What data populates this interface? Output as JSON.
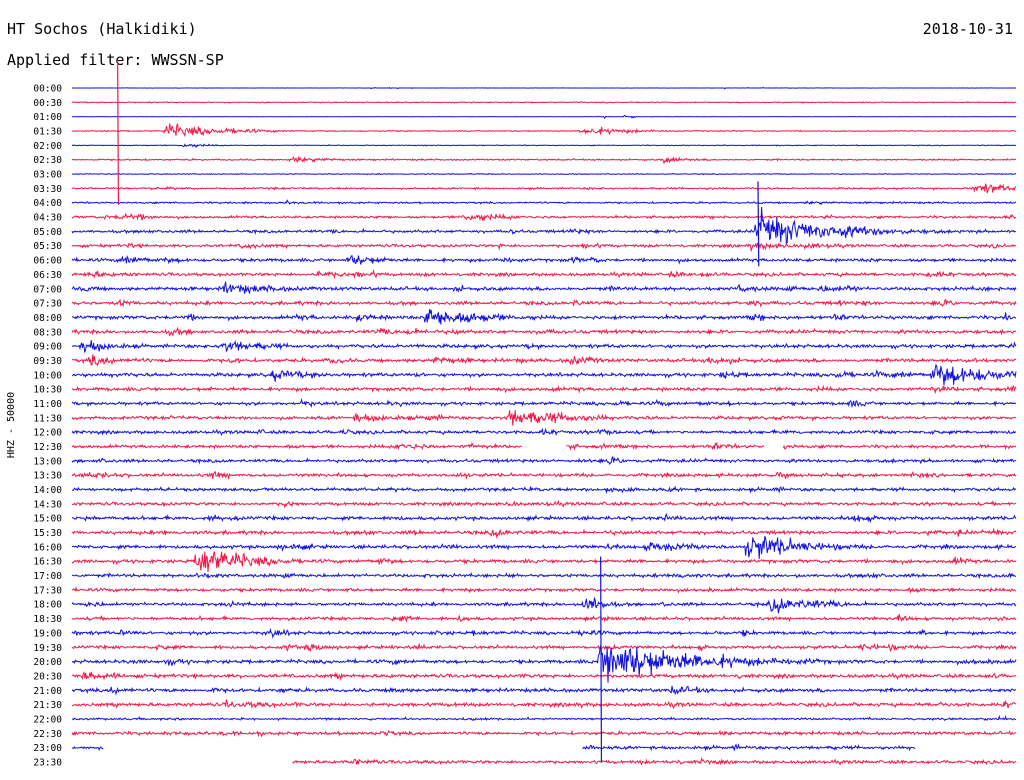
{
  "header": {
    "station": "HT Sochos (Halkidiki)",
    "date": "2018-10-31",
    "filter": "Applied filter: WWSSN-SP"
  },
  "chart_data": {
    "type": "helicorder",
    "channel_label": "HHZ - 50000",
    "row_labels": [
      "00:00",
      "00:30",
      "01:00",
      "01:30",
      "02:00",
      "02:30",
      "03:00",
      "03:30",
      "04:00",
      "04:30",
      "05:00",
      "05:30",
      "06:00",
      "06:30",
      "07:00",
      "07:30",
      "08:00",
      "08:30",
      "09:00",
      "09:30",
      "10:00",
      "10:30",
      "11:00",
      "11:30",
      "12:00",
      "12:30",
      "13:00",
      "13:30",
      "14:00",
      "14:30",
      "15:00",
      "15:30",
      "16:00",
      "16:30",
      "17:00",
      "17:30",
      "18:00",
      "18:30",
      "19:00",
      "19:30",
      "20:00",
      "20:30",
      "21:00",
      "21:30",
      "22:00",
      "22:30",
      "23:00",
      "23:30"
    ],
    "minutes_per_row": 30,
    "colors": [
      "#1010e0",
      "#f01848"
    ],
    "noise": [
      0.2,
      0.6,
      0.3,
      0.6,
      0.5,
      0.9,
      0.5,
      1.0,
      1.0,
      1.4,
      1.6,
      1.6,
      1.8,
      1.8,
      2.0,
      2.0,
      2.0,
      2.0,
      2.0,
      2.0,
      2.0,
      2.0,
      1.8,
      1.8,
      1.8,
      1.8,
      1.8,
      1.8,
      1.8,
      1.8,
      2.0,
      2.0,
      2.0,
      2.0,
      1.8,
      1.8,
      1.8,
      1.8,
      1.8,
      1.8,
      2.0,
      2.0,
      2.0,
      2.0,
      1.8,
      1.8,
      1.8,
      1.8
    ],
    "events": [
      {
        "row": 0,
        "min": 9.2,
        "amp": 4,
        "dur": 1.0
      },
      {
        "row": 0,
        "min": 20.0,
        "amp": 4,
        "dur": 1.6
      },
      {
        "row": 2,
        "min": 16.2,
        "amp": 5,
        "dur": 1.5
      },
      {
        "row": 3,
        "min": 3.0,
        "amp": 9,
        "dur": 1.8
      },
      {
        "row": 3,
        "min": 16.2,
        "amp": 6,
        "dur": 1.5
      },
      {
        "row": 4,
        "min": 3.5,
        "amp": 3,
        "dur": 0.8
      },
      {
        "row": 5,
        "min": 7.0,
        "amp": 4,
        "dur": 1.5
      },
      {
        "row": 5,
        "min": 18.8,
        "amp": 4,
        "dur": 1.0
      },
      {
        "row": 7,
        "min": 28.7,
        "amp": 8,
        "dur": 1.2
      },
      {
        "row": 9,
        "min": 1.5,
        "amp": 6,
        "dur": 1.2
      },
      {
        "row": 9,
        "min": 12.5,
        "amp": 6,
        "dur": 1.5
      },
      {
        "row": 10,
        "min": 21.8,
        "amp": 22,
        "dur": 2.5
      },
      {
        "row": 11,
        "min": 21.5,
        "amp": 5,
        "dur": 2.0
      },
      {
        "row": 12,
        "min": 1.6,
        "amp": 7,
        "dur": 1.0
      },
      {
        "row": 12,
        "min": 8.8,
        "amp": 8,
        "dur": 1.2
      },
      {
        "row": 13,
        "min": 0.5,
        "amp": 5,
        "dur": 1.2
      },
      {
        "row": 13,
        "min": 27.2,
        "amp": 5,
        "dur": 1.0
      },
      {
        "row": 14,
        "min": 4.8,
        "amp": 8,
        "dur": 2.0
      },
      {
        "row": 14,
        "min": 23.8,
        "amp": 5,
        "dur": 1.5
      },
      {
        "row": 15,
        "min": 27.5,
        "amp": 5,
        "dur": 1.0
      },
      {
        "row": 16,
        "min": 9.0,
        "amp": 5,
        "dur": 1.5
      },
      {
        "row": 16,
        "min": 11.3,
        "amp": 16,
        "dur": 1.6
      },
      {
        "row": 17,
        "min": 10.5,
        "amp": 5,
        "dur": 1.5
      },
      {
        "row": 18,
        "min": 0.4,
        "amp": 10,
        "dur": 1.0
      },
      {
        "row": 18,
        "min": 4.8,
        "amp": 10,
        "dur": 1.3
      },
      {
        "row": 19,
        "min": 0.6,
        "amp": 8,
        "dur": 1.0
      },
      {
        "row": 19,
        "min": 15.8,
        "amp": 6,
        "dur": 1.2
      },
      {
        "row": 19,
        "min": 20.2,
        "amp": 6,
        "dur": 1.5
      },
      {
        "row": 20,
        "min": 6.3,
        "amp": 8,
        "dur": 1.5
      },
      {
        "row": 20,
        "min": 20.6,
        "amp": 5,
        "dur": 1.5
      },
      {
        "row": 20,
        "min": 27.4,
        "amp": 16,
        "dur": 2.2
      },
      {
        "row": 23,
        "min": 9.0,
        "amp": 6,
        "dur": 1.8
      },
      {
        "row": 23,
        "min": 13.9,
        "amp": 13,
        "dur": 2.0
      },
      {
        "row": 25,
        "min": 10.3,
        "amp": 5,
        "dur": 1.8
      },
      {
        "row": 32,
        "min": 18.3,
        "amp": 7,
        "dur": 2.0
      },
      {
        "row": 32,
        "min": 21.5,
        "amp": 18,
        "dur": 1.8
      },
      {
        "row": 33,
        "min": 4.0,
        "amp": 22,
        "dur": 1.5
      },
      {
        "row": 36,
        "min": 16.3,
        "amp": 14,
        "dur": 0.6
      },
      {
        "row": 36,
        "min": 22.2,
        "amp": 10,
        "dur": 2.0
      },
      {
        "row": 38,
        "min": 6.2,
        "amp": 6,
        "dur": 1.0
      },
      {
        "row": 39,
        "min": 7.5,
        "amp": 6,
        "dur": 1.0
      },
      {
        "row": 40,
        "min": 16.8,
        "amp": 30,
        "dur": 2.8
      },
      {
        "row": 42,
        "min": 19.0,
        "amp": 6,
        "dur": 1.5
      }
    ],
    "gaps": [
      {
        "row": 25,
        "from": 14.3,
        "to": 15.7
      },
      {
        "row": 25,
        "from": 22.0,
        "to": 22.6
      },
      {
        "row": 46,
        "from": 1.0,
        "to": 16.2
      },
      {
        "row": 46,
        "from": 26.8,
        "to": 30.0
      },
      {
        "row": 47,
        "from": 0.0,
        "to": 7.0
      }
    ],
    "line_rows": [
      0,
      2,
      44
    ],
    "spikes": [
      {
        "row": 5,
        "min": 1.45,
        "up": 100,
        "down": 45
      },
      {
        "row": 40,
        "min": 16.8,
        "up": 105,
        "down": 100
      },
      {
        "row": 10,
        "min": 21.8,
        "up": 50,
        "down": 35
      }
    ],
    "xlabel": "",
    "ylabel": ""
  }
}
